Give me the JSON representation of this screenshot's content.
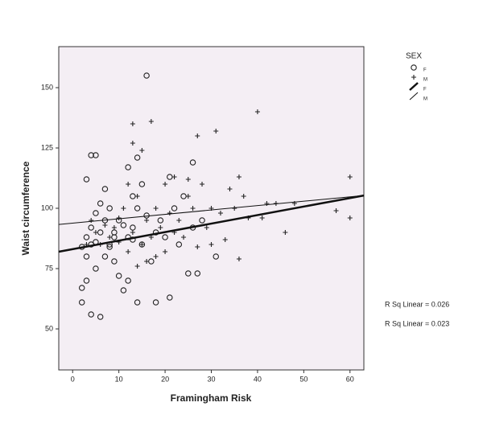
{
  "chart_data": {
    "type": "scatter",
    "x_label": "Framingham Risk",
    "y_label": "Waist circumference",
    "xlim": [
      -3,
      63
    ],
    "ylim": [
      33,
      167
    ],
    "xticks": [
      0,
      10,
      20,
      30,
      40,
      50,
      60
    ],
    "yticks": [
      50,
      75,
      100,
      125,
      150
    ],
    "grid": false,
    "background": "#f4eef4",
    "legend_title": "SEX",
    "legend": "right",
    "series": [
      {
        "name": "F",
        "marker": "circle",
        "color": "#222222",
        "x": [
          16,
          4,
          5,
          3,
          14,
          12,
          21,
          26,
          2,
          4,
          6,
          14,
          18,
          21,
          31,
          25,
          27,
          2,
          3,
          5,
          7,
          8,
          9,
          10,
          12,
          13,
          14,
          15,
          17,
          19,
          20,
          22,
          24,
          26,
          28,
          3,
          4,
          5,
          6,
          7,
          8,
          9,
          10,
          11,
          12,
          13,
          15,
          16,
          18,
          23,
          6,
          4,
          3,
          7,
          8,
          2,
          5,
          9,
          11,
          13
        ],
        "y": [
          155,
          122,
          122,
          112,
          121,
          117,
          113,
          119,
          61,
          56,
          55,
          61,
          61,
          63,
          80,
          73,
          73,
          67,
          70,
          75,
          80,
          85,
          90,
          95,
          88,
          92,
          100,
          85,
          78,
          95,
          88,
          100,
          105,
          92,
          95,
          88,
          92,
          98,
          102,
          108,
          84,
          78,
          72,
          66,
          70,
          105,
          110,
          97,
          90,
          85,
          90,
          85,
          80,
          95,
          100,
          84,
          86,
          88,
          93,
          87
        ]
      },
      {
        "name": "M",
        "marker": "plus",
        "color": "#222222",
        "x": [
          13,
          17,
          27,
          31,
          40,
          13,
          15,
          60,
          57,
          60,
          46,
          44,
          36,
          38,
          33,
          30,
          28,
          22,
          20,
          25,
          18,
          16,
          14,
          12,
          10,
          9,
          8,
          6,
          5,
          11,
          13,
          15,
          17,
          19,
          21,
          23,
          24,
          26,
          29,
          32,
          34,
          36,
          41,
          42,
          35,
          30,
          27,
          22,
          20,
          18,
          16,
          14,
          12,
          10,
          7,
          4,
          3,
          37,
          48,
          25
        ],
        "y": [
          135,
          136,
          130,
          132,
          140,
          127,
          124,
          113,
          99,
          96,
          90,
          102,
          79,
          96,
          87,
          100,
          110,
          113,
          110,
          105,
          100,
          95,
          105,
          110,
          96,
          92,
          88,
          85,
          90,
          100,
          90,
          85,
          88,
          92,
          98,
          95,
          88,
          100,
          92,
          98,
          108,
          113,
          96,
          102,
          100,
          85,
          84,
          90,
          82,
          80,
          78,
          76,
          82,
          86,
          93,
          95,
          85,
          105,
          102,
          112
        ]
      }
    ],
    "fit_lines": [
      {
        "name": "F",
        "width": 2.5,
        "x": [
          -3,
          63
        ],
        "y": [
          82,
          105.3
        ]
      },
      {
        "name": "M",
        "width": 1,
        "x": [
          -3,
          63
        ],
        "y": [
          93.3,
          105.3
        ]
      }
    ],
    "annotations": [
      "R Sq Linear = 0.026",
      "R Sq Linear = 0.023"
    ]
  }
}
